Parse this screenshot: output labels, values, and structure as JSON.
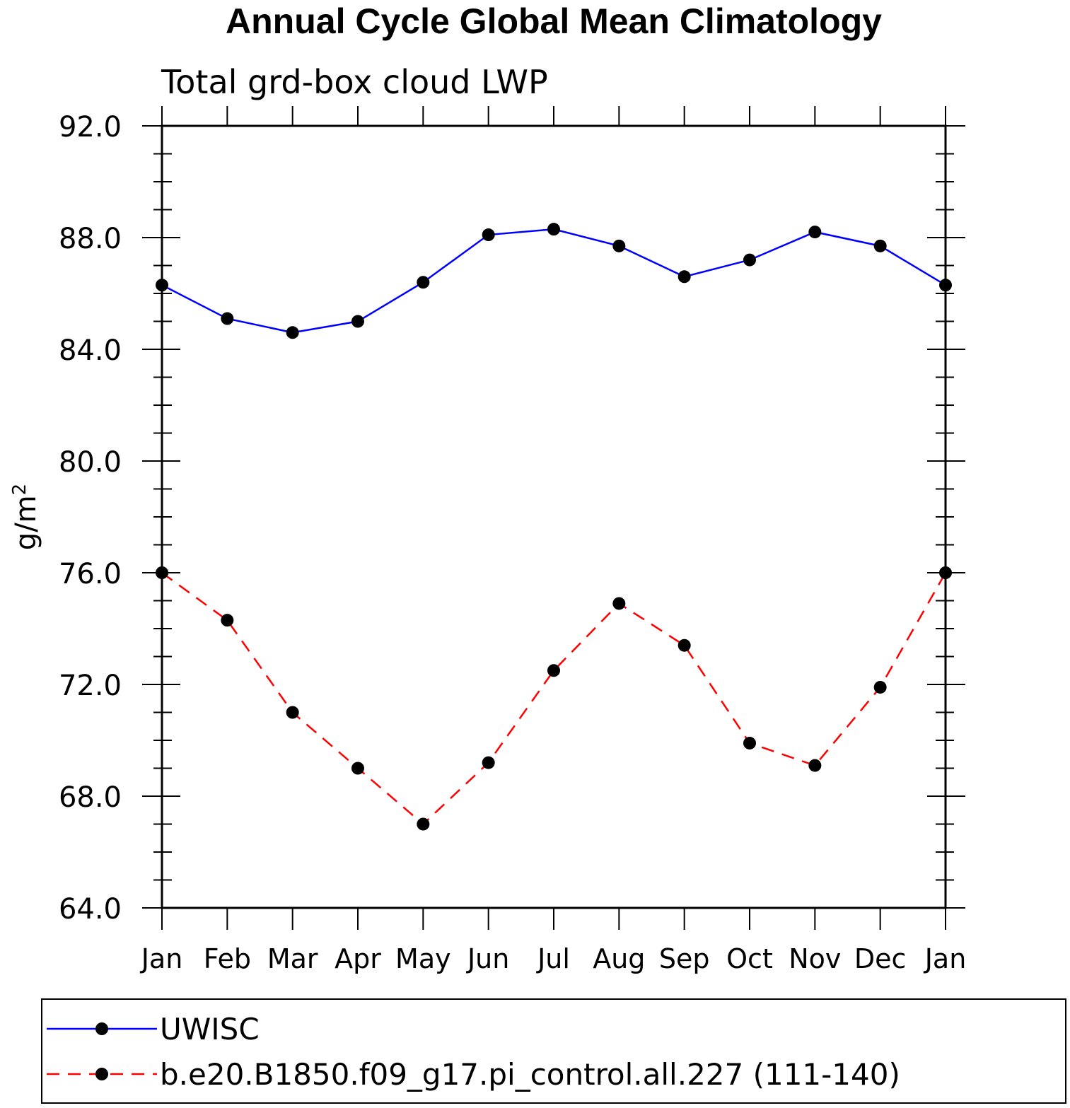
{
  "chart_data": {
    "type": "line",
    "title": "Annual Cycle Global Mean Climatology",
    "subtitle": "Total grd-box cloud LWP",
    "ylabel": "g/m",
    "ylabel_superscript": "2",
    "xlabel": "",
    "categories": [
      "Jan",
      "Feb",
      "Mar",
      "Apr",
      "May",
      "Jun",
      "Jul",
      "Aug",
      "Sep",
      "Oct",
      "Nov",
      "Dec",
      "Jan"
    ],
    "ylim": [
      64.0,
      92.0
    ],
    "yticks": [
      "64.0",
      "68.0",
      "72.0",
      "76.0",
      "80.0",
      "84.0",
      "88.0",
      "92.0"
    ],
    "ytick_values": [
      64,
      68,
      72,
      76,
      80,
      84,
      88,
      92
    ],
    "grid": false,
    "legend_position": "bottom",
    "series": [
      {
        "name": "UWISC",
        "color": "#0000ff",
        "line_style": "solid",
        "marker": "filled-circle",
        "values": [
          86.3,
          85.1,
          84.6,
          85.0,
          86.4,
          88.1,
          88.3,
          87.7,
          86.6,
          87.2,
          88.2,
          87.7,
          86.3
        ]
      },
      {
        "name": "b.e20.B1850.f09_g17.pi_control.all.227 (111-140)",
        "color": "#ff0000",
        "line_style": "dashed",
        "marker": "filled-circle",
        "values": [
          76.0,
          74.3,
          71.0,
          69.0,
          67.0,
          69.2,
          72.5,
          74.9,
          73.4,
          69.9,
          69.1,
          71.9,
          76.0
        ]
      }
    ]
  }
}
